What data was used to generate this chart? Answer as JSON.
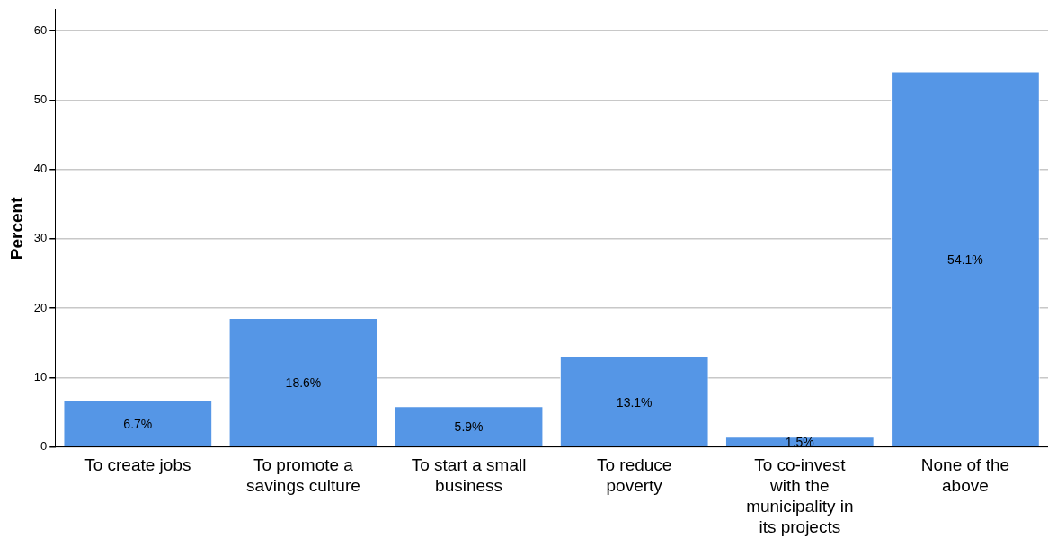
{
  "chart_data": {
    "type": "bar",
    "ylabel": "Percent",
    "categories": [
      "To create jobs",
      "To promote a savings culture",
      "To start a small business",
      "To reduce poverty",
      "To co-invest with the municipality in its projects",
      "None of the above"
    ],
    "values": [
      6.7,
      18.6,
      5.9,
      13.1,
      1.5,
      54.1
    ],
    "value_labels": [
      "6.7%",
      "18.6%",
      "5.9%",
      "13.1%",
      "1.5%",
      "54.1%"
    ],
    "color": "#5596e6",
    "ylim": [
      0,
      63
    ],
    "yticks": [
      0,
      10,
      20,
      30,
      40,
      50,
      60
    ],
    "grid": "y",
    "legend": false
  }
}
